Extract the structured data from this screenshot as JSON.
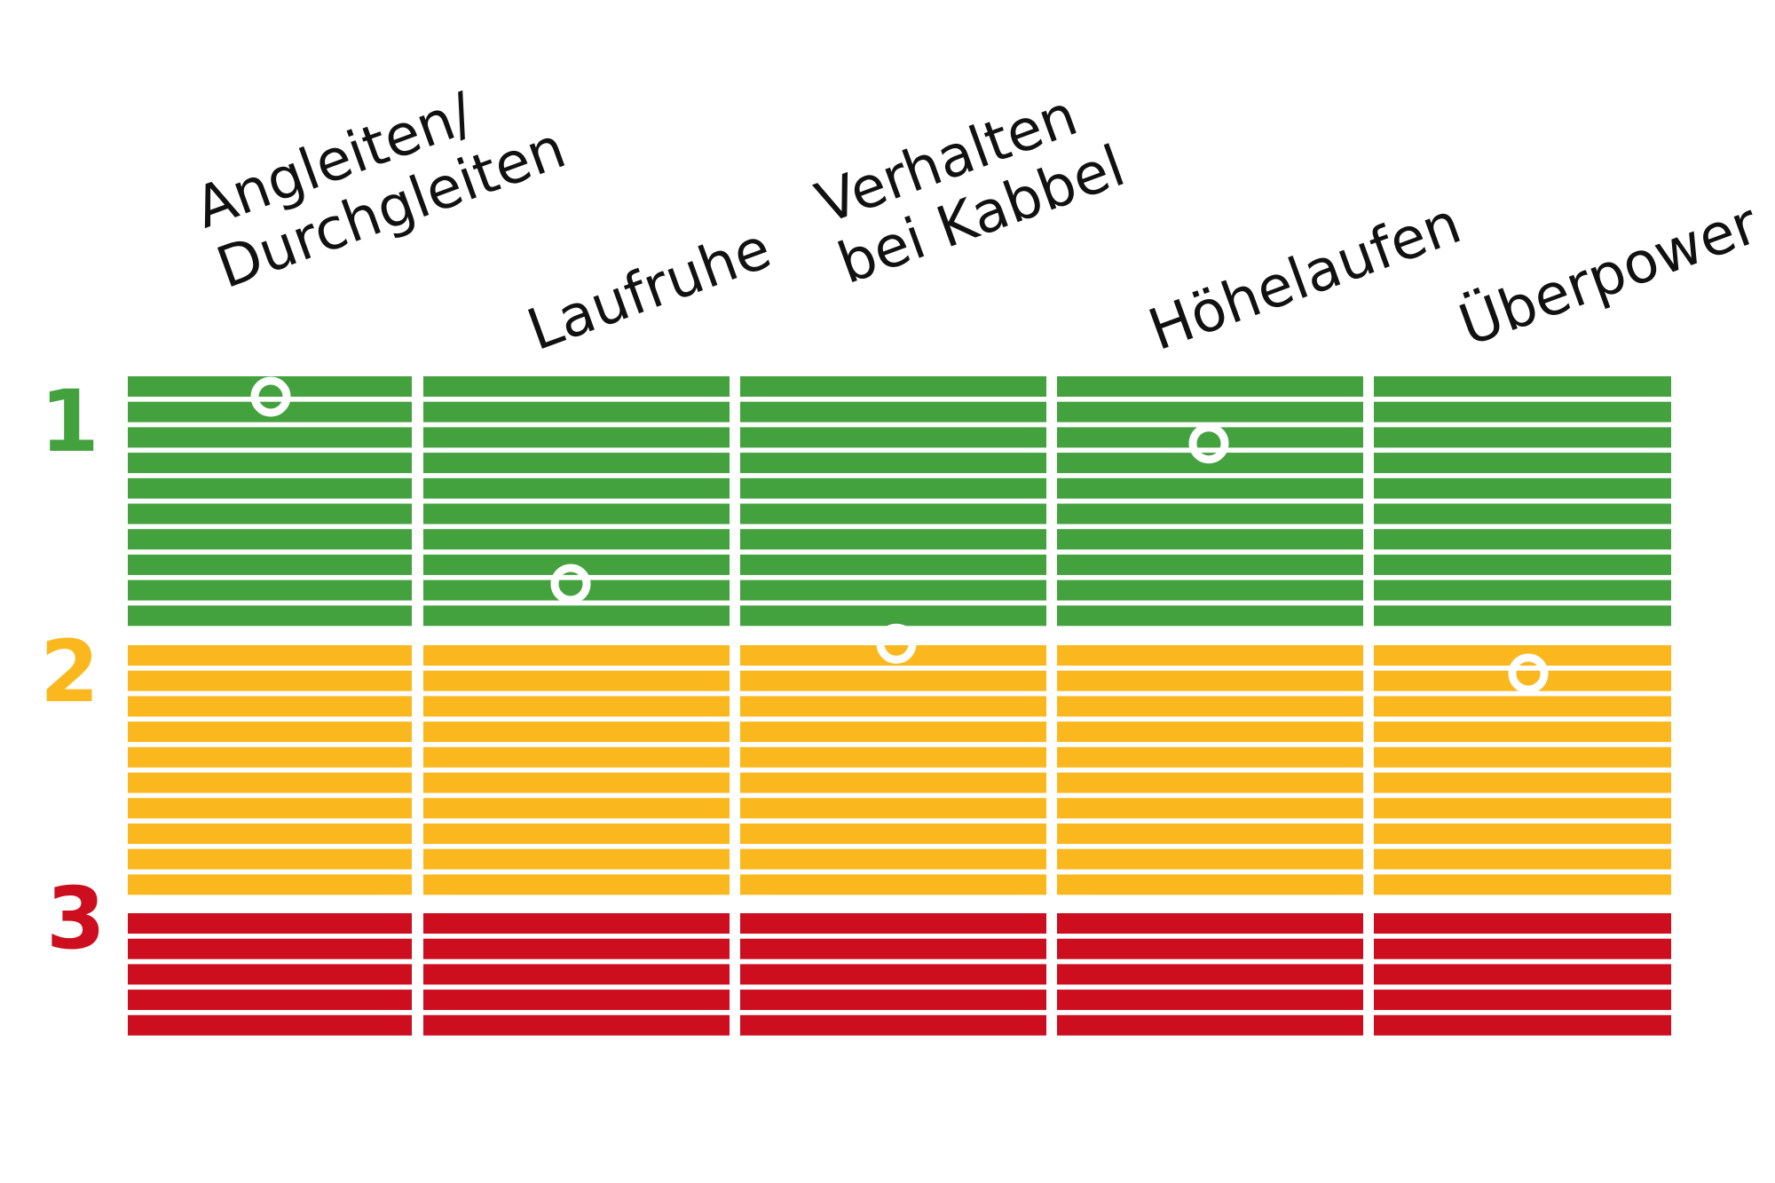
{
  "chart_data": {
    "type": "scatter",
    "categories": [
      [
        "Angleiten/",
        "Durchgleiten"
      ],
      [
        "Laufruhe"
      ],
      [
        "Verhalten",
        "bei Kabbel"
      ],
      [
        "Höhelaufen"
      ],
      [
        "Überpower"
      ]
    ],
    "values": [
      1.0,
      1.72,
      1.95,
      1.18,
      2.05
    ],
    "levels": [
      {
        "label": "1",
        "color": "#43a23e",
        "stripes": 10
      },
      {
        "label": "2",
        "color": "#fab81e",
        "stripes": 10
      },
      {
        "label": "3",
        "color": "#cc0e1f",
        "stripes": 5
      }
    ],
    "ylim": [
      1,
      3
    ],
    "marker_color": "#ffffff"
  }
}
